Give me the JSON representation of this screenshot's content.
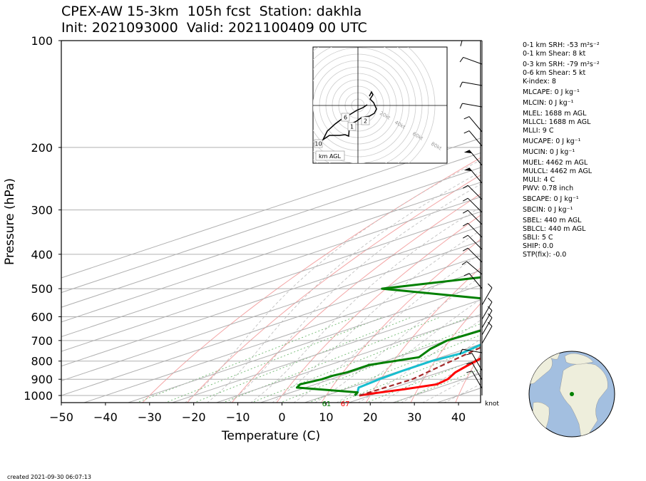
{
  "title_line1": "CPEX-AW 15-3km  105h fcst  Station: dakhla",
  "title_line2": "Init: 2021093000  Valid: 2021100409 00 UTC",
  "created": "created 2021-09-30 06:07:13",
  "colors": {
    "temperature": "#ff0000",
    "dewpoint": "#008000",
    "wetbulb": "#17becf",
    "parcel": "#a52a2a"
  },
  "chart_data": {
    "type": "line",
    "title": "",
    "xlabel": "Temperature (C)",
    "ylabel": "Pressure (hPa)",
    "xlim": [
      -50,
      45
    ],
    "ylim": [
      1050,
      100
    ],
    "yscale": "log",
    "xticks": [
      -50,
      -40,
      -30,
      -20,
      -10,
      0,
      10,
      20,
      30,
      40
    ],
    "xtick_labels": [
      "−50",
      "−40",
      "−30",
      "−20",
      "−10",
      "0",
      "10",
      "20",
      "30",
      "40"
    ],
    "yticks": [
      100,
      200,
      300,
      400,
      500,
      600,
      700,
      800,
      900,
      1000
    ],
    "ytick_labels": [
      "100",
      "200",
      "300",
      "400",
      "500",
      "600",
      "700",
      "800",
      "900",
      "1000"
    ],
    "surface_labels": {
      "dewpoint": "61",
      "temperature": "67"
    },
    "barb_unit": "knot",
    "series": [
      {
        "key": "temperature",
        "points": [
          [
            1000,
            17.5
          ],
          [
            985,
            19.5
          ],
          [
            960,
            23.5
          ],
          [
            930,
            27.5
          ],
          [
            900,
            26.5
          ],
          [
            860,
            23.5
          ],
          [
            820,
            21.5
          ],
          [
            780,
            19.5
          ],
          [
            740,
            16.5
          ],
          [
            700,
            13
          ],
          [
            650,
            8.5
          ],
          [
            600,
            4.5
          ],
          [
            550,
            2
          ],
          [
            500,
            -1
          ],
          [
            450,
            -5
          ],
          [
            400,
            -9
          ],
          [
            350,
            -16
          ],
          [
            300,
            -23
          ],
          [
            250,
            -30
          ],
          [
            200,
            -37
          ],
          [
            170,
            -38.5
          ],
          [
            150,
            -39.5
          ],
          [
            130,
            -38
          ],
          [
            100,
            -35.5
          ]
        ]
      },
      {
        "key": "wetbulb",
        "points": [
          [
            1000,
            16.5
          ],
          [
            980,
            15
          ],
          [
            950,
            12
          ],
          [
            900,
            11
          ],
          [
            850,
            10.5
          ],
          [
            800,
            10.5
          ],
          [
            760,
            12
          ],
          [
            720,
            10.5
          ],
          [
            700,
            9
          ],
          [
            650,
            7
          ],
          [
            600,
            3
          ],
          [
            550,
            -2
          ],
          [
            500,
            -6
          ],
          [
            450,
            -7
          ],
          [
            400,
            -9
          ],
          [
            350,
            -16
          ],
          [
            300,
            -24
          ],
          [
            250,
            -31
          ],
          [
            200,
            -38
          ],
          [
            170,
            -39.5
          ],
          [
            150,
            -41
          ],
          [
            130,
            -40
          ],
          [
            100,
            -36.5
          ]
        ]
      },
      {
        "key": "dewpoint",
        "points": [
          [
            1000,
            16.5
          ],
          [
            980,
            15
          ],
          [
            950,
            -2
          ],
          [
            930,
            -3.5
          ],
          [
            900,
            -2
          ],
          [
            880,
            -2
          ],
          [
            860,
            -1
          ],
          [
            820,
            -1
          ],
          [
            780,
            5
          ],
          [
            740,
            2
          ],
          [
            700,
            0
          ],
          [
            650,
            1
          ],
          [
            600,
            2
          ],
          [
            550,
            -6
          ],
          [
            500,
            -50
          ],
          [
            450,
            -29
          ],
          [
            420,
            -28
          ],
          [
            380,
            -22
          ],
          [
            350,
            -18
          ],
          [
            320,
            -19
          ],
          [
            300,
            -34
          ],
          [
            250,
            -33
          ],
          [
            220,
            -33.5
          ],
          [
            200,
            -35
          ],
          [
            170,
            -36
          ],
          [
            150,
            -37
          ],
          [
            130,
            -34
          ],
          [
            100,
            -35
          ]
        ]
      },
      {
        "key": "parcel",
        "style": "dashed",
        "points": [
          [
            1000,
            17.5
          ],
          [
            900,
            18.5
          ],
          [
            800,
            15
          ],
          [
            700,
            11
          ],
          [
            600,
            4
          ],
          [
            500,
            -4
          ],
          [
            400,
            -14
          ],
          [
            300,
            -28
          ],
          [
            200,
            -45
          ],
          [
            150,
            -56
          ],
          [
            120,
            -65
          ],
          [
            100,
            -73
          ]
        ]
      }
    ],
    "hodograph": {
      "ring_labels": [
        "20kt",
        "40kt",
        "60kt",
        "80kt"
      ],
      "height_markers": [
        "1",
        "2",
        "6",
        "10"
      ],
      "legend": "km AGL"
    },
    "indices": [
      [
        "0-1 km SRH: -53 m²s⁻²",
        "0-1 km Shear: 8 kt"
      ],
      [
        "0-3 km SRH: -79 m²s⁻²",
        "0-6 km Shear: 5 kt",
        "K-index: 8"
      ],
      [
        "MLCAPE: 0 J kg⁻¹"
      ],
      [
        "MLCIN: 0 J kg⁻¹"
      ],
      [
        "MLEL: 1688 m AGL",
        "MLLCL: 1688 m AGL",
        "MLLI: 9 C"
      ],
      [
        "MUCAPE: 0 J kg⁻¹"
      ],
      [
        "MUCIN: 0 J kg⁻¹"
      ],
      [
        "MUEL: 4462 m AGL",
        "MULCL: 4462 m AGL",
        "MULI: 4 C",
        "PWV: 0.78 inch"
      ],
      [
        "SBCAPE: 0 J kg⁻¹"
      ],
      [
        "SBCIN: 0 J kg⁻¹"
      ],
      [
        "SBEL: 440 m AGL",
        "SBLCL: 440 m AGL",
        "SBLI: 5 C",
        "SHIP: 0.0",
        "STP(fix): -0.0"
      ]
    ]
  }
}
